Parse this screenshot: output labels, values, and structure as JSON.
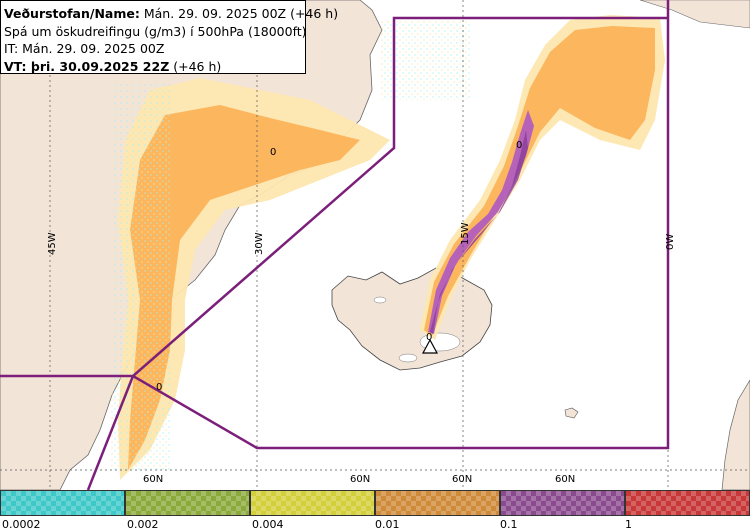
{
  "info": {
    "line1_bold": "Veðurstofan/Name:",
    "line1_rest": " Mán. 29. 09. 2025 00Z (+46 h)",
    "line2": "Spá um öskudreifingu (g/m3) í 500hPa (18000ft)",
    "line3": "IT: Mán. 29. 09. 2025 00Z",
    "line4_bold": "VT: þri. 30.09.2025 22Z",
    "line4_rest": " (+46 h)"
  },
  "map": {
    "meridian_labels": [
      "45W",
      "30W",
      "15W",
      "0W"
    ],
    "parallel_labels": [
      "60N",
      "60N",
      "60N",
      "60N"
    ],
    "contour_labels": [
      "0",
      "0",
      "0",
      "0"
    ],
    "volcano_icon": "warning-triangle-icon",
    "colors": {
      "ocean": "#ffffff",
      "land": "#f3e4d8",
      "fir_boundary": "#7b1f7a",
      "ash_light": "#fde7b0",
      "ash_orange": "#fbb35a",
      "ash_purple": "#b25ebd",
      "speckle_cyan": "#a7f0f0"
    }
  },
  "legend": {
    "items": [
      {
        "color": "#3fc8c8",
        "label": "0.0002"
      },
      {
        "color": "#8caa3b",
        "label": "0.002"
      },
      {
        "color": "#d2cf3a",
        "label": "0.004"
      },
      {
        "color": "#cf8a3a",
        "label": "0.01"
      },
      {
        "color": "#8a4a8e",
        "label": "0.1"
      },
      {
        "color": "#c83838",
        "label": "1"
      }
    ]
  }
}
